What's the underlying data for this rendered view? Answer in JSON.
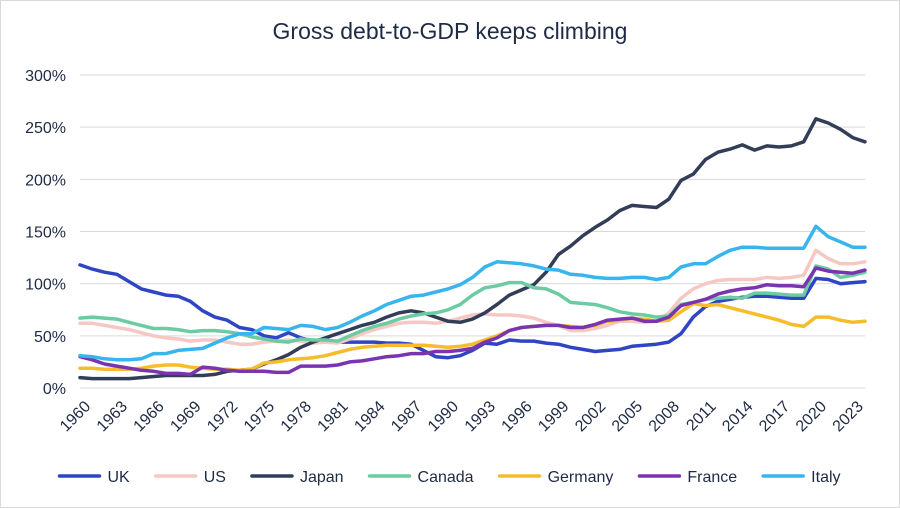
{
  "chart_data": {
    "type": "line",
    "title": "Gross debt-to-GDP keeps climbing",
    "xlabel": "",
    "ylabel": "",
    "ylim": [
      0,
      300
    ],
    "y_ticks": [
      "0%",
      "50%",
      "100%",
      "150%",
      "200%",
      "250%",
      "300%"
    ],
    "x_ticks": [
      "1960",
      "1963",
      "1966",
      "1969",
      "1972",
      "1975",
      "1978",
      "1981",
      "1984",
      "1987",
      "1990",
      "1993",
      "1996",
      "1999",
      "2002",
      "2005",
      "2008",
      "2011",
      "2014",
      "2017",
      "2020",
      "2023"
    ],
    "grid": "horizontal",
    "legend_position": "bottom",
    "x": [
      1960,
      1961,
      1962,
      1963,
      1964,
      1965,
      1966,
      1967,
      1968,
      1969,
      1970,
      1971,
      1972,
      1973,
      1974,
      1975,
      1976,
      1977,
      1978,
      1979,
      1980,
      1981,
      1982,
      1983,
      1984,
      1985,
      1986,
      1987,
      1988,
      1989,
      1990,
      1991,
      1992,
      1993,
      1994,
      1995,
      1996,
      1997,
      1998,
      1999,
      2000,
      2001,
      2002,
      2003,
      2004,
      2005,
      2006,
      2007,
      2008,
      2009,
      2010,
      2011,
      2012,
      2013,
      2014,
      2015,
      2016,
      2017,
      2018,
      2019,
      2020,
      2021,
      2022,
      2023,
      2024
    ],
    "series": [
      {
        "name": "UK",
        "color": "#2f45c4",
        "values": [
          118,
          114,
          111,
          109,
          102,
          95,
          92,
          89,
          88,
          83,
          74,
          68,
          65,
          58,
          56,
          50,
          48,
          53,
          48,
          45,
          44,
          44,
          44,
          44,
          44,
          43,
          43,
          42,
          36,
          30,
          29,
          31,
          36,
          43,
          42,
          46,
          45,
          45,
          43,
          42,
          39,
          37,
          35,
          36,
          37,
          40,
          41,
          42,
          44,
          52,
          68,
          78,
          83,
          85,
          87,
          88,
          88,
          87,
          86,
          86,
          105,
          104,
          100,
          101,
          102
        ]
      },
      {
        "name": "US",
        "color": "#f6c8c4",
        "values": [
          62,
          62,
          60,
          58,
          56,
          53,
          50,
          48,
          47,
          45,
          46,
          46,
          44,
          42,
          42,
          44,
          45,
          46,
          45,
          43,
          44,
          43,
          47,
          52,
          56,
          59,
          62,
          63,
          63,
          62,
          64,
          67,
          70,
          71,
          70,
          70,
          69,
          67,
          63,
          60,
          55,
          55,
          57,
          60,
          64,
          64,
          63,
          64,
          72,
          86,
          95,
          100,
          103,
          104,
          104,
          104,
          106,
          105,
          106,
          108,
          132,
          124,
          119,
          119,
          121
        ]
      },
      {
        "name": "Japan",
        "color": "#323d57",
        "values": [
          10,
          9,
          9,
          9,
          9,
          10,
          11,
          12,
          12,
          12,
          12,
          13,
          16,
          17,
          18,
          23,
          27,
          32,
          39,
          44,
          48,
          52,
          56,
          60,
          63,
          68,
          72,
          74,
          72,
          68,
          64,
          63,
          66,
          72,
          80,
          89,
          94,
          99,
          111,
          128,
          136,
          146,
          154,
          161,
          170,
          175,
          174,
          173,
          181,
          199,
          205,
          219,
          226,
          229,
          233,
          228,
          232,
          231,
          232,
          236,
          258,
          254,
          248,
          240,
          236
        ]
      },
      {
        "name": "Canada",
        "color": "#6ccba2",
        "values": [
          67,
          68,
          67,
          66,
          63,
          60,
          57,
          57,
          56,
          54,
          55,
          55,
          54,
          52,
          49,
          47,
          45,
          44,
          47,
          46,
          46,
          45,
          50,
          55,
          59,
          62,
          66,
          69,
          71,
          72,
          75,
          80,
          89,
          96,
          98,
          101,
          101,
          96,
          95,
          90,
          82,
          81,
          80,
          77,
          73,
          71,
          70,
          68,
          69,
          80,
          82,
          85,
          86,
          87,
          86,
          91,
          91,
          90,
          89,
          89,
          117,
          114,
          106,
          108,
          111
        ]
      },
      {
        "name": "Germany",
        "color": "#f5bd2c",
        "values": [
          19,
          19,
          18,
          18,
          18,
          19,
          21,
          22,
          22,
          20,
          19,
          18,
          18,
          17,
          18,
          24,
          25,
          27,
          28,
          29,
          31,
          34,
          37,
          39,
          40,
          41,
          41,
          41,
          41,
          40,
          39,
          40,
          42,
          46,
          50,
          55,
          58,
          59,
          60,
          60,
          59,
          58,
          60,
          64,
          65,
          67,
          66,
          64,
          65,
          73,
          81,
          79,
          80,
          77,
          74,
          71,
          68,
          65,
          61,
          59,
          68,
          68,
          65,
          63,
          64
        ]
      },
      {
        "name": "France",
        "color": "#7a34b0",
        "values": [
          30,
          27,
          23,
          21,
          19,
          17,
          16,
          14,
          14,
          13,
          20,
          19,
          17,
          16,
          16,
          16,
          15,
          15,
          21,
          21,
          21,
          22,
          25,
          26,
          28,
          30,
          31,
          33,
          33,
          35,
          35,
          36,
          38,
          44,
          48,
          55,
          58,
          59,
          60,
          60,
          58,
          58,
          61,
          65,
          66,
          67,
          64,
          64,
          68,
          79,
          82,
          85,
          90,
          93,
          95,
          96,
          99,
          98,
          98,
          97,
          115,
          112,
          111,
          110,
          113
        ]
      },
      {
        "name": "Italy",
        "color": "#38b5ec",
        "values": [
          31,
          30,
          28,
          27,
          27,
          28,
          33,
          33,
          36,
          37,
          38,
          43,
          48,
          52,
          52,
          58,
          57,
          56,
          60,
          59,
          56,
          58,
          63,
          69,
          74,
          80,
          84,
          88,
          89,
          92,
          95,
          99,
          106,
          116,
          121,
          120,
          119,
          117,
          114,
          113,
          109,
          108,
          106,
          105,
          105,
          106,
          106,
          104,
          106,
          116,
          119,
          119,
          126,
          132,
          135,
          135,
          134,
          134,
          134,
          134,
          155,
          145,
          140,
          135,
          135
        ]
      }
    ]
  }
}
